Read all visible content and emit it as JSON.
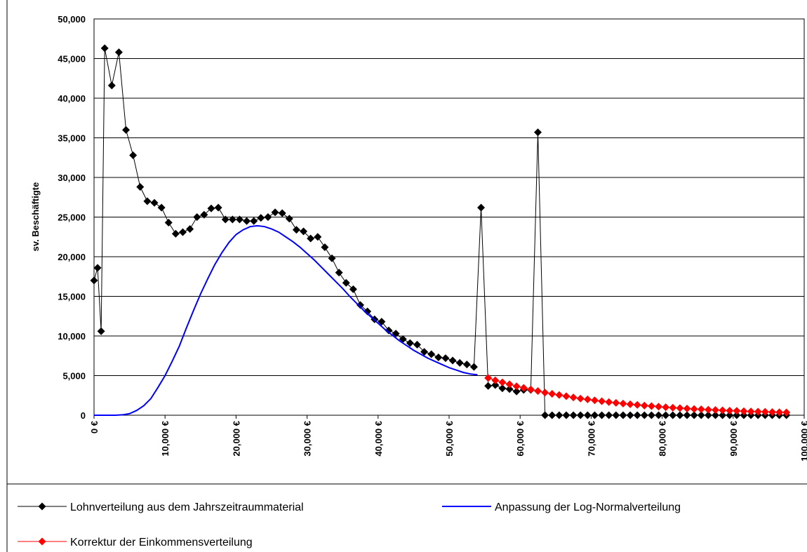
{
  "chart_data": {
    "type": "line",
    "y_label": "sv. Beschäftigte",
    "xlim": [
      0,
      100000
    ],
    "xticks": [
      {
        "value": 0,
        "label": "0 €"
      },
      {
        "value": 10000,
        "label": "10,000 €"
      },
      {
        "value": 20000,
        "label": "20,000 €"
      },
      {
        "value": 30000,
        "label": "30,000 €"
      },
      {
        "value": 40000,
        "label": "40,000 €"
      },
      {
        "value": 50000,
        "label": "50,000 €"
      },
      {
        "value": 60000,
        "label": "60,000 €"
      },
      {
        "value": 70000,
        "label": "70,000 €"
      },
      {
        "value": 80000,
        "label": "80,000 €"
      },
      {
        "value": 90000,
        "label": "90,000 €"
      },
      {
        "value": 100000,
        "label": "100,000 €"
      }
    ],
    "ylim": [
      0,
      50000
    ],
    "yticks": [
      0,
      {
        "value": 5000,
        "label": "5,000"
      },
      {
        "value": 10000,
        "label": "10,000"
      },
      {
        "value": 15000,
        "label": "15,000"
      },
      {
        "value": 20000,
        "label": "20,000"
      },
      {
        "value": 25000,
        "label": "25,000"
      },
      {
        "value": 30000,
        "label": "30,000"
      },
      {
        "value": 35000,
        "label": "35,000"
      },
      {
        "value": 40000,
        "label": "40,000"
      },
      {
        "value": 45000,
        "label": "45,000"
      },
      {
        "value": 50000,
        "label": "50,000"
      }
    ],
    "grid": true,
    "legend": "bottom",
    "series": [
      {
        "name": "Lohnverteilung aus dem Jahrszeitraummaterial",
        "color": "#000000",
        "marker": "diamond",
        "x": [
          0,
          500,
          1000,
          1500,
          2500,
          3500,
          4500,
          5500,
          6500,
          7500,
          8500,
          9500,
          10500,
          11500,
          12500,
          13500,
          14500,
          15500,
          16500,
          17500,
          18500,
          19500,
          20500,
          21500,
          22500,
          23500,
          24500,
          25500,
          26500,
          27500,
          28500,
          29500,
          30500,
          31500,
          32500,
          33500,
          34500,
          35500,
          36500,
          37500,
          38500,
          39500,
          40500,
          41500,
          42500,
          43500,
          44500,
          45500,
          46500,
          47500,
          48500,
          49500,
          50500,
          51500,
          52500,
          53500,
          54500,
          55500,
          56500,
          57500,
          58500,
          59500,
          60500,
          61500,
          62500,
          63500,
          64500,
          65500,
          66500,
          67500,
          68500,
          69500,
          70500,
          71500,
          72500,
          73500,
          74500,
          75500,
          76500,
          77500,
          78500,
          79500,
          80500,
          81500,
          82500,
          83500,
          84500,
          85500,
          86500,
          87500,
          88500,
          89500,
          90500,
          91500,
          92500,
          93500,
          94500,
          95500,
          96500,
          97500
        ],
        "values": [
          17000,
          18600,
          10600,
          46300,
          41600,
          45800,
          36000,
          32800,
          28800,
          27000,
          26800,
          26200,
          24300,
          22900,
          23100,
          23500,
          25000,
          25300,
          26100,
          26200,
          24700,
          24700,
          24700,
          24500,
          24500,
          24900,
          25000,
          25600,
          25500,
          24800,
          23400,
          23200,
          22300,
          22500,
          21200,
          19800,
          18000,
          16700,
          15900,
          13900,
          13100,
          12100,
          11800,
          10700,
          10300,
          9600,
          9100,
          8900,
          8000,
          7700,
          7300,
          7200,
          6900,
          6600,
          6400,
          6100,
          26200,
          3700,
          3800,
          3400,
          3300,
          3000,
          3200,
          3200,
          35700,
          0,
          0,
          0,
          0,
          0,
          0,
          0,
          0,
          0,
          0,
          0,
          0,
          0,
          0,
          0,
          0,
          0,
          0,
          0,
          0,
          0,
          0,
          0,
          0,
          0,
          0,
          0,
          0,
          0,
          0,
          0,
          0,
          0,
          0,
          0
        ]
      },
      {
        "name": "Anpassung der Log-Normalverteilung",
        "color": "#0000ff",
        "marker": "none",
        "x": [
          0,
          1000,
          2000,
          3000,
          4000,
          5000,
          6000,
          7000,
          8000,
          9000,
          10000,
          11000,
          12000,
          13000,
          14000,
          15000,
          16000,
          17000,
          18000,
          19000,
          20000,
          21000,
          22000,
          23000,
          24000,
          25000,
          26000,
          27000,
          28000,
          29000,
          30000,
          31000,
          32000,
          33000,
          34000,
          35000,
          36000,
          37000,
          38000,
          39000,
          40000,
          41000,
          42000,
          43000,
          44000,
          45000,
          46000,
          47000,
          48000,
          49000,
          50000,
          51000,
          52000,
          53000,
          54000
        ],
        "values": [
          0,
          0,
          0,
          0,
          50,
          200,
          600,
          1200,
          2100,
          3500,
          5000,
          6800,
          8700,
          11000,
          13200,
          15300,
          17200,
          19000,
          20500,
          21800,
          22800,
          23400,
          23800,
          23900,
          23800,
          23500,
          23100,
          22500,
          21900,
          21200,
          20400,
          19600,
          18700,
          17800,
          16900,
          16000,
          15000,
          14100,
          13200,
          12400,
          11600,
          10800,
          10100,
          9400,
          8800,
          8200,
          7700,
          7200,
          6800,
          6400,
          6000,
          5700,
          5400,
          5200,
          5100
        ]
      },
      {
        "name": "Korrektur der Einkommensverteilung",
        "color": "#ff0000",
        "marker": "diamond",
        "x": [
          55500,
          56500,
          57500,
          58500,
          59500,
          60500,
          61500,
          62500,
          63500,
          64500,
          65500,
          66500,
          67500,
          68500,
          69500,
          70500,
          71500,
          72500,
          73500,
          74500,
          75500,
          76500,
          77500,
          78500,
          79500,
          80500,
          81500,
          82500,
          83500,
          84500,
          85500,
          86500,
          87500,
          88500,
          89500,
          90500,
          91500,
          92500,
          93500,
          94500,
          95500,
          96500,
          97500
        ],
        "values": [
          4700,
          4400,
          4150,
          3900,
          3650,
          3450,
          3250,
          3050,
          2850,
          2700,
          2550,
          2400,
          2250,
          2100,
          2000,
          1880,
          1770,
          1660,
          1560,
          1470,
          1380,
          1300,
          1220,
          1150,
          1080,
          1010,
          950,
          900,
          840,
          790,
          750,
          700,
          660,
          620,
          580,
          550,
          510,
          480,
          450,
          430,
          400,
          380,
          350
        ]
      }
    ]
  }
}
